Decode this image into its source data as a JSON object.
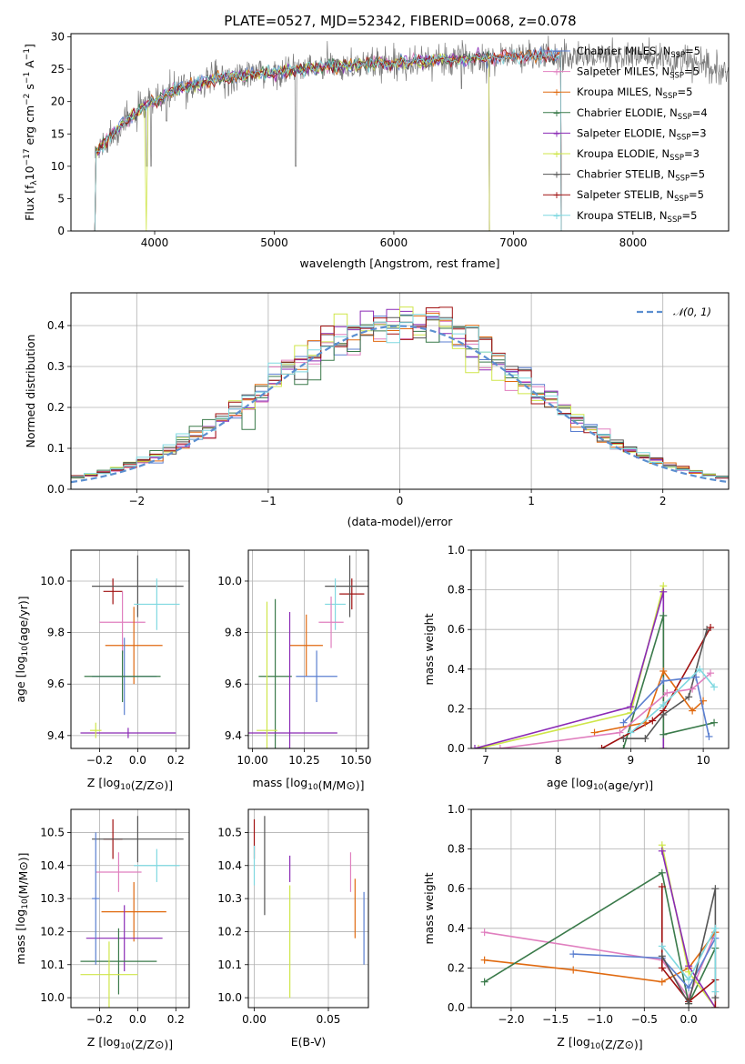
{
  "figure_title": "PLATE=0527, MJD=52342, FIBERID=0068, z=0.078",
  "colors": {
    "chabrier_miles": "#5b7fd0",
    "salpeter_miles": "#e07fbf",
    "kroupa_miles": "#e06a10",
    "chabrier_elodie": "#3a7a4a",
    "salpeter_elodie": "#8a2ab5",
    "kroupa_elodie": "#cfe64a",
    "chabrier_stelib": "#555555",
    "salpeter_stelib": "#a01010",
    "kroupa_stelib": "#7fd8e0",
    "normal": "#5b8fd0"
  },
  "chart_data": [
    {
      "id": "spectrum",
      "type": "line",
      "title": "PLATE=0527, MJD=52342, FIBERID=0068, z=0.078",
      "xlabel": "wavelength [Angstrom, rest frame]",
      "ylabel": "Flux [f_λ 10^-17 erg cm^-2 s^-1 A^-1]",
      "xlim": [
        3300,
        8800
      ],
      "ylim": [
        0,
        30.5
      ],
      "xticks": [
        4000,
        5000,
        6000,
        7000,
        8000
      ],
      "yticks": [
        0,
        5,
        10,
        15,
        20,
        25,
        30
      ],
      "legend_position": "upper-right",
      "legend": [
        {
          "label": "Chabrier MILES, N",
          "sub": "SSP",
          "suffix": "=5",
          "color": "#5b7fd0"
        },
        {
          "label": "Salpeter MILES, N",
          "sub": "SSP",
          "suffix": "=5",
          "color": "#e07fbf"
        },
        {
          "label": "Kroupa MILES, N",
          "sub": "SSP",
          "suffix": "=5",
          "color": "#e06a10"
        },
        {
          "label": "Chabrier ELODIE, N",
          "sub": "SSP",
          "suffix": "=4",
          "color": "#3a7a4a"
        },
        {
          "label": "Salpeter ELODIE, N",
          "sub": "SSP",
          "suffix": "=3",
          "color": "#8a2ab5"
        },
        {
          "label": "Kroupa ELODIE, N",
          "sub": "SSP",
          "suffix": "=3",
          "color": "#cfe64a"
        },
        {
          "label": "Chabrier STELIB, N",
          "sub": "SSP",
          "suffix": "=5",
          "color": "#555555"
        },
        {
          "label": "Salpeter STELIB, N",
          "sub": "SSP",
          "suffix": "=5",
          "color": "#a01010"
        },
        {
          "label": "Kroupa STELIB, N",
          "sub": "SSP",
          "suffix": "=5",
          "color": "#7fd8e0"
        }
      ],
      "continuum": [
        [
          3500,
          12
        ],
        [
          3700,
          16
        ],
        [
          3900,
          19
        ],
        [
          4000,
          20
        ],
        [
          4200,
          22
        ],
        [
          4500,
          23.5
        ],
        [
          5000,
          24.5
        ],
        [
          5500,
          25.5
        ],
        [
          6000,
          26
        ],
        [
          6500,
          26.5
        ],
        [
          7000,
          27
        ],
        [
          7500,
          27
        ],
        [
          8000,
          27
        ],
        [
          8500,
          26
        ],
        [
          8800,
          24
        ]
      ]
    },
    {
      "id": "residuals",
      "type": "histogram",
      "xlabel": "(data-model)/error",
      "ylabel": "Normed distribution",
      "xlim": [
        -2.5,
        2.5
      ],
      "ylim": [
        0,
        0.48
      ],
      "xticks": [
        -2,
        -1,
        0,
        1,
        2
      ],
      "yticks": [
        0.0,
        0.1,
        0.2,
        0.3,
        0.4
      ],
      "legend_label": "𝒩(0, 1)",
      "legend_position": "upper-right",
      "bin_width": 0.1
    },
    {
      "id": "age-vs-Z",
      "type": "scatter",
      "xlabel": "Z [log10(Z/Z⊙)]",
      "ylabel": "age [log10(age/yr)]",
      "xlim": [
        -0.35,
        0.27
      ],
      "ylim": [
        9.35,
        10.12
      ],
      "xticks": [
        -0.2,
        0.0,
        0.2
      ],
      "yticks": [
        9.4,
        9.6,
        9.8,
        10.0
      ],
      "points": [
        {
          "x": -0.13,
          "y": 9.96,
          "xerr": 0.05,
          "yerr": 0.05,
          "color": "#a01010"
        },
        {
          "x": 0.0,
          "y": 9.98,
          "xerr": 0.24,
          "yerr": 0.12,
          "color": "#555555"
        },
        {
          "x": 0.1,
          "y": 9.91,
          "xerr": 0.12,
          "yerr": 0.1,
          "color": "#7fd8e0"
        },
        {
          "x": -0.08,
          "y": 9.84,
          "xerr": 0.12,
          "yerr": 0.12,
          "color": "#e07fbf"
        },
        {
          "x": -0.02,
          "y": 9.75,
          "xerr": 0.15,
          "yerr": 0.15,
          "color": "#e06a10"
        },
        {
          "x": -0.07,
          "y": 9.63,
          "xerr": 0.17,
          "yerr": 0.15,
          "color": "#5b7fd0"
        },
        {
          "x": -0.08,
          "y": 9.63,
          "xerr": 0.2,
          "yerr": 0.1,
          "color": "#3a7a4a"
        },
        {
          "x": -0.05,
          "y": 9.41,
          "xerr": 0.25,
          "yerr": 0.02,
          "color": "#8a2ab5"
        },
        {
          "x": -0.22,
          "y": 9.42,
          "xerr": 0.03,
          "yerr": 0.03,
          "color": "#cfe64a"
        }
      ]
    },
    {
      "id": "age-vs-mass",
      "type": "scatter",
      "xlabel": "mass [log10(M/M⊙)]",
      "ylabel": "",
      "xlim": [
        9.98,
        10.56
      ],
      "ylim": [
        9.35,
        10.12
      ],
      "xticks": [
        10.0,
        10.25,
        10.5
      ],
      "yticks": [
        9.4,
        9.6,
        9.8,
        10.0
      ],
      "points": [
        {
          "x": 10.48,
          "y": 9.95,
          "xerr": 0.06,
          "yerr": 0.06,
          "color": "#a01010"
        },
        {
          "x": 10.47,
          "y": 9.98,
          "xerr": 0.12,
          "yerr": 0.12,
          "color": "#555555"
        },
        {
          "x": 10.4,
          "y": 9.91,
          "xerr": 0.05,
          "yerr": 0.1,
          "color": "#7fd8e0"
        },
        {
          "x": 10.38,
          "y": 9.84,
          "xerr": 0.06,
          "yerr": 0.1,
          "color": "#e07fbf"
        },
        {
          "x": 10.26,
          "y": 9.75,
          "xerr": 0.08,
          "yerr": 0.12,
          "color": "#e06a10"
        },
        {
          "x": 10.31,
          "y": 9.63,
          "xerr": 0.1,
          "yerr": 0.1,
          "color": "#5b7fd0"
        },
        {
          "x": 10.11,
          "y": 9.63,
          "xerr": 0.08,
          "yerr": 0.3,
          "color": "#3a7a4a"
        },
        {
          "x": 10.18,
          "y": 9.41,
          "xerr": 0.23,
          "yerr": 0.47,
          "color": "#8a2ab5"
        },
        {
          "x": 10.07,
          "y": 9.42,
          "xerr": 0.05,
          "yerr": 0.5,
          "color": "#cfe64a"
        }
      ]
    },
    {
      "id": "mass-weight-vs-age",
      "type": "line",
      "xlabel": "age [log10(age/yr)]",
      "ylabel": "mass weight",
      "xlim": [
        6.8,
        10.35
      ],
      "ylim": [
        0,
        1.0
      ],
      "xticks": [
        7,
        8,
        9,
        10
      ],
      "yticks": [
        0.0,
        0.2,
        0.4,
        0.6,
        0.8,
        1.0
      ],
      "series": [
        {
          "color": "#cfe64a",
          "points": [
            [
              6.9,
              0.0
            ],
            [
              9.0,
              0.18
            ],
            [
              9.45,
              0.82
            ],
            [
              9.45,
              0.0
            ]
          ]
        },
        {
          "color": "#8a2ab5",
          "points": [
            [
              6.85,
              0.0
            ],
            [
              9.0,
              0.21
            ],
            [
              9.45,
              0.79
            ],
            [
              9.45,
              0.0
            ]
          ]
        },
        {
          "color": "#3a7a4a",
          "points": [
            [
              8.9,
              0.0
            ],
            [
              9.45,
              0.67
            ],
            [
              9.45,
              0.07
            ],
            [
              10.15,
              0.13
            ]
          ]
        },
        {
          "color": "#a01010",
          "points": [
            [
              8.6,
              0.0
            ],
            [
              9.3,
              0.14
            ],
            [
              9.45,
              0.19
            ],
            [
              10.1,
              0.61
            ]
          ]
        },
        {
          "color": "#555555",
          "points": [
            [
              8.9,
              0.05
            ],
            [
              9.2,
              0.05
            ],
            [
              9.45,
              0.17
            ],
            [
              9.8,
              0.26
            ],
            [
              10.05,
              0.6
            ]
          ]
        },
        {
          "color": "#e06a10",
          "points": [
            [
              8.5,
              0.08
            ],
            [
              9.2,
              0.13
            ],
            [
              9.45,
              0.39
            ],
            [
              9.85,
              0.19
            ],
            [
              10.0,
              0.24
            ]
          ]
        },
        {
          "color": "#5b7fd0",
          "points": [
            [
              8.9,
              0.13
            ],
            [
              9.45,
              0.34
            ],
            [
              9.9,
              0.36
            ],
            [
              10.08,
              0.06
            ]
          ]
        },
        {
          "color": "#e07fbf",
          "points": [
            [
              7.2,
              0.0
            ],
            [
              8.85,
              0.08
            ],
            [
              9.5,
              0.28
            ],
            [
              9.85,
              0.3
            ],
            [
              10.1,
              0.38
            ]
          ]
        },
        {
          "color": "#7fd8e0",
          "points": [
            [
              9.0,
              0.08
            ],
            [
              9.45,
              0.22
            ],
            [
              9.95,
              0.4
            ],
            [
              10.15,
              0.31
            ]
          ]
        }
      ]
    },
    {
      "id": "mass-vs-Z",
      "type": "scatter",
      "xlabel": "Z [log10(Z/Z⊙)]",
      "ylabel": "mass [log10(M/M⊙)]",
      "xlim": [
        -0.35,
        0.27
      ],
      "ylim": [
        9.97,
        10.57
      ],
      "xticks": [
        -0.2,
        0.0,
        0.2
      ],
      "yticks": [
        10.0,
        10.1,
        10.2,
        10.3,
        10.4,
        10.5
      ],
      "points": [
        {
          "x": -0.13,
          "y": 10.48,
          "xerr": 0.05,
          "yerr": 0.06,
          "color": "#a01010"
        },
        {
          "x": 0.0,
          "y": 10.48,
          "xerr": 0.24,
          "yerr": 0.07,
          "color": "#555555"
        },
        {
          "x": 0.1,
          "y": 10.4,
          "xerr": 0.12,
          "yerr": 0.05,
          "color": "#7fd8e0"
        },
        {
          "x": -0.1,
          "y": 10.38,
          "xerr": 0.12,
          "yerr": 0.06,
          "color": "#e07fbf"
        },
        {
          "x": -0.02,
          "y": 10.26,
          "xerr": 0.17,
          "yerr": 0.09,
          "color": "#e06a10"
        },
        {
          "x": -0.07,
          "y": 10.18,
          "xerr": 0.2,
          "yerr": 0.1,
          "color": "#8a2ab5"
        },
        {
          "x": -0.1,
          "y": 10.11,
          "xerr": 0.2,
          "yerr": 0.1,
          "color": "#3a7a4a"
        },
        {
          "x": -0.15,
          "y": 10.07,
          "xerr": 0.15,
          "yerr": 0.1,
          "color": "#cfe64a"
        },
        {
          "x": -0.22,
          "y": 10.3,
          "xerr": 0.02,
          "yerr": 0.2,
          "color": "#5b7fd0"
        }
      ]
    },
    {
      "id": "mass-vs-ebv",
      "type": "scatter",
      "xlabel": "E(B-V)",
      "ylabel": "",
      "xlim": [
        -0.004,
        0.077
      ],
      "ylim": [
        9.97,
        10.57
      ],
      "xticks": [
        0.0,
        0.05
      ],
      "yticks": [
        10.0,
        10.1,
        10.2,
        10.3,
        10.4,
        10.5
      ],
      "points": [
        {
          "x": 0.0,
          "y": 10.48,
          "xerr": 0.0,
          "yerr": 0.06,
          "color": "#a01010"
        },
        {
          "x": 0.0,
          "y": 10.4,
          "xerr": 0.0,
          "yerr": 0.06,
          "color": "#7fd8e0"
        },
        {
          "x": 0.007,
          "y": 10.4,
          "xerr": 0.0,
          "yerr": 0.15,
          "color": "#555555"
        },
        {
          "x": 0.024,
          "y": 10.39,
          "xerr": 0.0,
          "yerr": 0.04,
          "color": "#8a2ab5"
        },
        {
          "x": 0.024,
          "y": 10.17,
          "xerr": 0.0,
          "yerr": 0.17,
          "color": "#cfe64a"
        },
        {
          "x": 0.065,
          "y": 10.38,
          "xerr": 0.0,
          "yerr": 0.06,
          "color": "#e07fbf"
        },
        {
          "x": 0.068,
          "y": 10.27,
          "xerr": 0.0,
          "yerr": 0.09,
          "color": "#e06a10"
        },
        {
          "x": 0.074,
          "y": 10.21,
          "xerr": 0.0,
          "yerr": 0.11,
          "color": "#5b7fd0"
        }
      ]
    },
    {
      "id": "mass-weight-vs-Z",
      "type": "line",
      "xlabel": "Z [log10(Z/Z⊙)]",
      "ylabel": "mass weight",
      "xlim": [
        -2.45,
        0.45
      ],
      "ylim": [
        0,
        1.0
      ],
      "xticks": [
        -2.0,
        -1.5,
        -1.0,
        -0.5,
        0.0
      ],
      "yticks": [
        0.0,
        0.2,
        0.4,
        0.6,
        0.8,
        1.0
      ],
      "series": [
        {
          "color": "#e07fbf",
          "points": [
            [
              -2.3,
              0.38
            ],
            [
              -0.3,
              0.24
            ],
            [
              0.0,
              0.05
            ],
            [
              0.3,
              0.38
            ]
          ]
        },
        {
          "color": "#e06a10",
          "points": [
            [
              -2.3,
              0.24
            ],
            [
              -1.3,
              0.19
            ],
            [
              -0.3,
              0.13
            ],
            [
              0.0,
              0.2
            ],
            [
              0.3,
              0.38
            ]
          ]
        },
        {
          "color": "#3a7a4a",
          "points": [
            [
              -2.3,
              0.13
            ],
            [
              -0.3,
              0.68
            ],
            [
              0.0,
              0.02
            ],
            [
              0.3,
              0.3
            ]
          ]
        },
        {
          "color": "#5b7fd0",
          "points": [
            [
              -1.3,
              0.27
            ],
            [
              -0.3,
              0.25
            ],
            [
              0.0,
              0.1
            ],
            [
              0.3,
              0.35
            ]
          ]
        },
        {
          "color": "#cfe64a",
          "points": [
            [
              -0.3,
              0.82
            ],
            [
              0.0,
              0.18
            ],
            [
              0.3,
              0.0
            ]
          ]
        },
        {
          "color": "#8a2ab5",
          "points": [
            [
              -0.3,
              0.79
            ],
            [
              0.0,
              0.21
            ],
            [
              0.3,
              0.0
            ]
          ]
        },
        {
          "color": "#a01010",
          "points": [
            [
              -0.3,
              0.61
            ],
            [
              -0.3,
              0.2
            ],
            [
              0.0,
              0.03
            ],
            [
              0.3,
              0.14
            ],
            [
              0.3,
              0.0
            ]
          ]
        },
        {
          "color": "#555555",
          "points": [
            [
              -0.3,
              0.26
            ],
            [
              0.0,
              0.02
            ],
            [
              0.3,
              0.6
            ],
            [
              0.3,
              0.05
            ]
          ]
        },
        {
          "color": "#7fd8e0",
          "points": [
            [
              -0.3,
              0.31
            ],
            [
              0.0,
              0.14
            ],
            [
              0.3,
              0.4
            ],
            [
              0.3,
              0.08
            ]
          ]
        }
      ]
    }
  ]
}
